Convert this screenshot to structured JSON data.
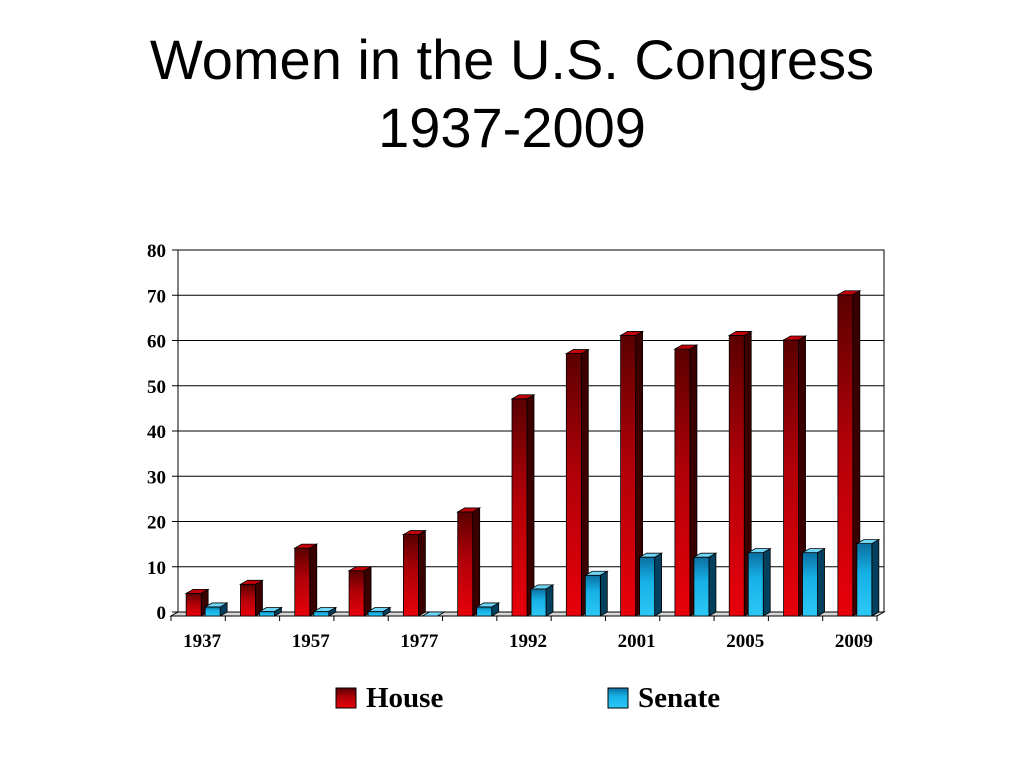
{
  "slide": {
    "title_line1": "Women in the U.S. Congress",
    "title_line2": "1937-2009"
  },
  "colors": {
    "house": "#e8000a",
    "house_dark": "#5a0000",
    "senate": "#16b0e6",
    "senate_dark": "#003f66"
  },
  "chart_data": {
    "type": "bar",
    "title": "Women in the U.S. Congress 1937-2009",
    "xlabel": "",
    "ylabel": "",
    "categories": [
      "1937",
      "",
      "1957",
      "",
      "1977",
      "",
      "1992",
      "",
      "2001",
      "",
      "2005",
      "",
      "2009"
    ],
    "series": [
      {
        "name": "House",
        "values": [
          5,
          7,
          15,
          10,
          18,
          23,
          48,
          58,
          62,
          59,
          62,
          61,
          71
        ]
      },
      {
        "name": "Senate",
        "values": [
          2,
          1,
          1,
          1,
          0,
          2,
          6,
          9,
          13,
          13,
          14,
          14,
          16
        ]
      }
    ],
    "ylim": [
      0,
      80
    ],
    "yticks": [
      "0",
      "10",
      "20",
      "30",
      "40",
      "50",
      "60",
      "70",
      "80"
    ],
    "xtick_labels": [
      "1937",
      "1957",
      "1977",
      "1992",
      "2001",
      "2005",
      "2009"
    ],
    "grid": true,
    "legend_position": "bottom"
  }
}
